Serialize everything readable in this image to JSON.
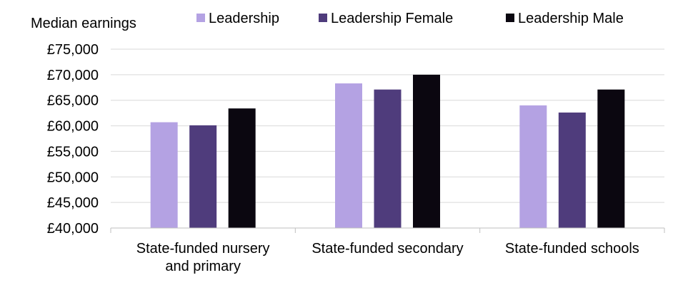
{
  "chart_data": {
    "type": "bar",
    "ylabel": "Median earnings",
    "categories": [
      [
        "State-funded nursery",
        "and primary"
      ],
      [
        "State-funded secondary"
      ],
      [
        "State-funded schools"
      ]
    ],
    "series": [
      {
        "name": "Leadership",
        "color": "#b4a2e3",
        "values": [
          60700,
          68300,
          64000
        ]
      },
      {
        "name": "Leadership Female",
        "color": "#4f3c7c",
        "values": [
          60100,
          67100,
          62600
        ]
      },
      {
        "name": "Leadership Male",
        "color": "#0b0710",
        "values": [
          63400,
          70000,
          67100
        ]
      }
    ],
    "ylim": [
      40000,
      75000
    ],
    "yticks": [
      40000,
      45000,
      50000,
      55000,
      60000,
      65000,
      70000,
      75000
    ],
    "ytick_labels": [
      "£40,000",
      "£45,000",
      "£50,000",
      "£55,000",
      "£60,000",
      "£65,000",
      "£70,000",
      "£75,000"
    ],
    "grid": true,
    "legend_position": "top"
  }
}
